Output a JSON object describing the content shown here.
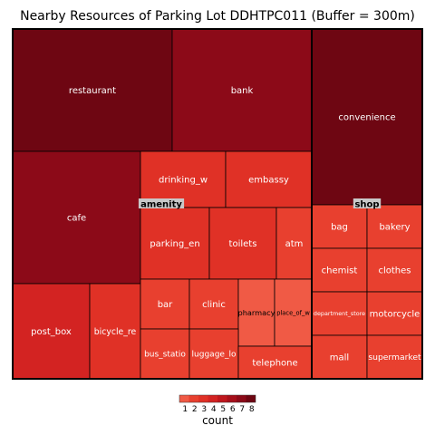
{
  "chart_data": {
    "type": "treemap",
    "title": "Nearby Resources of Parking Lot DDHTPC011 (Buffer = 300m)",
    "groups": [
      {
        "name": "amenity",
        "items": [
          {
            "label": "restaurant",
            "value": 8
          },
          {
            "label": "bank",
            "value": 7
          },
          {
            "label": "cafe",
            "value": 7
          },
          {
            "label": "drinking_w",
            "value": 3
          },
          {
            "label": "embassy",
            "value": 3
          },
          {
            "label": "parking_en",
            "value": 3
          },
          {
            "label": "toilets",
            "value": 3
          },
          {
            "label": "atm",
            "value": 2
          },
          {
            "label": "post_box",
            "value": 4
          },
          {
            "label": "bicycle_re",
            "value": 3
          },
          {
            "label": "bar",
            "value": 2
          },
          {
            "label": "clinic",
            "value": 2
          },
          {
            "label": "pharmacy",
            "value": 1
          },
          {
            "label": "place_of_w",
            "value": 1
          },
          {
            "label": "bus_statio",
            "value": 2
          },
          {
            "label": "luggage_lo",
            "value": 2
          },
          {
            "label": "telephone",
            "value": 2
          }
        ]
      },
      {
        "name": "shop",
        "items": [
          {
            "label": "convenience",
            "value": 8
          },
          {
            "label": "bag",
            "value": 2
          },
          {
            "label": "bakery",
            "value": 2
          },
          {
            "label": "chemist",
            "value": 2
          },
          {
            "label": "clothes",
            "value": 2
          },
          {
            "label": "department_store",
            "value": 2
          },
          {
            "label": "motorcycle",
            "value": 2
          },
          {
            "label": "mall",
            "value": 2
          },
          {
            "label": "supermarket",
            "value": 2
          }
        ]
      }
    ],
    "legend": {
      "title": "count",
      "ticks": [
        1,
        2,
        3,
        4,
        5,
        6,
        7,
        8
      ]
    },
    "colors": {
      "1": "#f05a45",
      "2": "#e8402f",
      "3": "#e03126",
      "4": "#d32322",
      "5": "#bf171d",
      "6": "#a60f1a",
      "7": "#8c0a18",
      "8": "#6e0612"
    }
  }
}
